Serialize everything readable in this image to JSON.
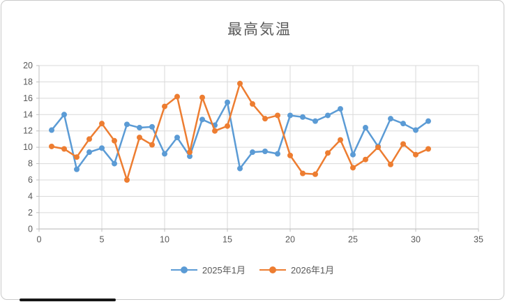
{
  "colors": {
    "series_2025": "#5B9BD5",
    "series_2026": "#ED7D31",
    "gridline": "#D9D9D9",
    "axis_line": "#BFBFBF",
    "axis_text": "#595959",
    "title_text": "#595959"
  },
  "chart_data": {
    "type": "line",
    "title": "最高気温",
    "x": [
      1,
      2,
      3,
      4,
      5,
      6,
      7,
      8,
      9,
      10,
      11,
      12,
      13,
      14,
      15,
      16,
      17,
      18,
      19,
      20,
      21,
      22,
      23,
      24,
      25,
      26,
      27,
      28,
      29,
      30,
      31
    ],
    "series": [
      {
        "name": "2025年1月",
        "values": [
          12.1,
          14.0,
          7.3,
          9.4,
          9.9,
          8.0,
          12.8,
          12.4,
          12.5,
          9.2,
          11.2,
          8.9,
          13.4,
          12.7,
          15.5,
          7.4,
          9.4,
          9.5,
          9.2,
          13.9,
          13.7,
          13.2,
          13.9,
          14.7,
          9.1,
          12.4,
          10.1,
          13.5,
          12.9,
          12.1,
          13.2
        ]
      },
      {
        "name": "2026年1月",
        "values": [
          10.1,
          9.8,
          8.8,
          11.0,
          12.9,
          10.8,
          6.0,
          11.2,
          10.3,
          15.0,
          16.2,
          9.4,
          16.1,
          12.0,
          12.6,
          17.8,
          15.3,
          13.5,
          13.9,
          9.0,
          6.8,
          6.7,
          9.3,
          10.9,
          7.5,
          8.5,
          10.0,
          7.9,
          10.4,
          9.1,
          9.8
        ]
      }
    ],
    "xlim": [
      0,
      35
    ],
    "ylim": [
      0,
      20
    ],
    "x_ticks": [
      0,
      5,
      10,
      15,
      20,
      25,
      30,
      35
    ],
    "y_ticks": [
      0,
      2,
      4,
      6,
      8,
      10,
      12,
      14,
      16,
      18,
      20
    ],
    "grid": true,
    "legend_position": "bottom"
  }
}
